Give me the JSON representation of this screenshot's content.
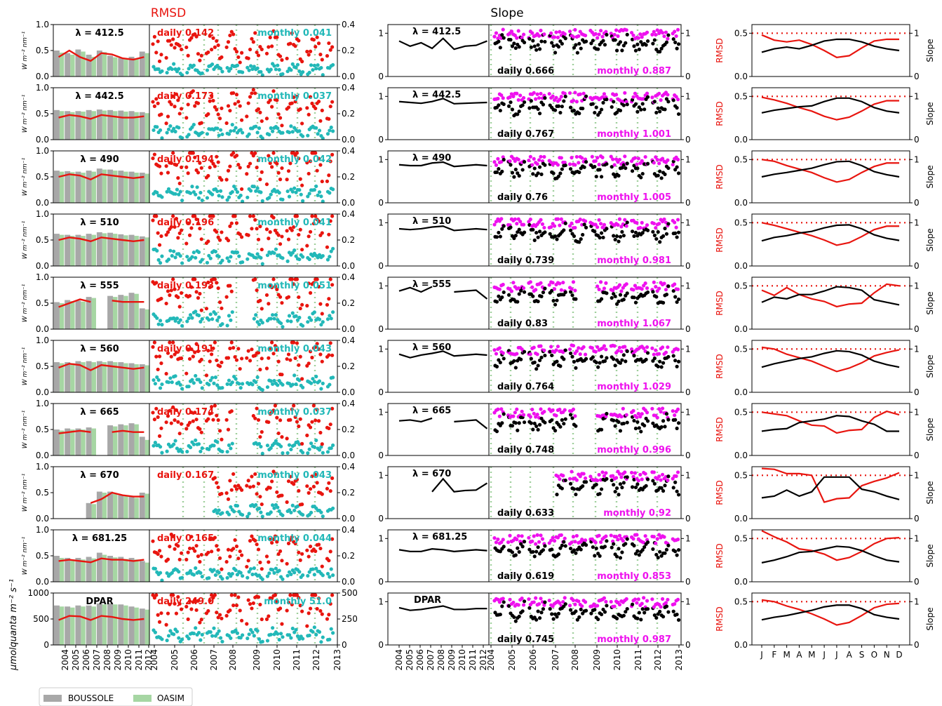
{
  "titles": {
    "rmsd": "RMSD",
    "slope": "Slope"
  },
  "colors": {
    "boussole": "#a8a8a8",
    "oasim": "#a6d6a3",
    "red": "#e8150f",
    "cyan": "#22b8b8",
    "magenta": "#ee11ee",
    "black": "#000000",
    "vline": "#9fcf9c"
  },
  "legend": {
    "boussole": "BOUSSOLE",
    "oasim": "OASIM"
  },
  "ylabels": {
    "rad": "W m⁻² nm⁻¹",
    "par": "μmolquanta m⁻² s⁻¹",
    "rmsd": "RMSD",
    "slope": "Slope"
  },
  "year_labels": [
    "2004",
    "2005",
    "2006",
    "2007",
    "2008",
    "2009",
    "2010",
    "2011",
    "2012"
  ],
  "year_labels_right": [
    "2004",
    "2005",
    "2006",
    "2007",
    "2008",
    "2009",
    "2010",
    "2011",
    "2012",
    "2013"
  ],
  "month_labels": [
    "J",
    "F",
    "M",
    "A",
    "M",
    "J",
    "J",
    "A",
    "S",
    "O",
    "N",
    "D"
  ],
  "chart_data": [
    {
      "type": "bar",
      "label": "λ = 412.5",
      "rmsd_daily": "daily 0.142",
      "rmsd_monthly": "monthly 0.041",
      "slope_daily": "daily 0.666",
      "slope_monthly": "monthly 0.887",
      "ylim_bar": [
        0,
        1.0
      ],
      "yticks_bar": [
        "0.0",
        "0.5",
        "1.0"
      ],
      "ylim_scatter": [
        0,
        0.4
      ],
      "yticks_scatter": [
        "0.0",
        "0.2",
        "0.4"
      ],
      "boussole": [
        0.5,
        0.45,
        0.52,
        0.42,
        0.5,
        0.4,
        0.36,
        0.38,
        0.48
      ],
      "oasim": [
        0.46,
        0.42,
        0.48,
        0.38,
        0.47,
        0.37,
        0.33,
        0.35,
        0.45
      ],
      "rmsd_line": [
        0.15,
        0.2,
        0.15,
        0.12,
        0.18,
        0.17,
        0.14,
        0.13,
        0.15
      ],
      "slope_line": [
        0.82,
        0.7,
        0.78,
        0.65,
        0.88,
        0.63,
        0.7,
        0.72,
        0.82
      ],
      "slope_ylim": [
        0,
        1.2
      ],
      "gaps": [],
      "seasonal_rmsd": [
        0.48,
        0.42,
        0.4,
        0.42,
        0.37,
        0.3,
        0.22,
        0.24,
        0.33,
        0.41,
        0.43,
        0.43
      ],
      "seasonal_slope": [
        0.56,
        0.64,
        0.68,
        0.64,
        0.72,
        0.82,
        0.86,
        0.86,
        0.8,
        0.7,
        0.64,
        0.6
      ]
    },
    {
      "type": "bar",
      "label": "λ = 442.5",
      "rmsd_daily": "daily 0.173",
      "rmsd_monthly": "monthly 0.037",
      "slope_daily": "daily 0.767",
      "slope_monthly": "monthly 1.001",
      "ylim_bar": [
        0,
        1.0
      ],
      "yticks_bar": [
        "0.0",
        "0.5",
        "1.0"
      ],
      "ylim_scatter": [
        0,
        0.4
      ],
      "yticks_scatter": [
        "0.0",
        "0.2",
        "0.4"
      ],
      "boussole": [
        0.57,
        0.55,
        0.55,
        0.57,
        0.58,
        0.57,
        0.56,
        0.55,
        0.53
      ],
      "oasim": [
        0.55,
        0.53,
        0.54,
        0.55,
        0.56,
        0.55,
        0.54,
        0.53,
        0.51
      ],
      "rmsd_line": [
        0.17,
        0.19,
        0.18,
        0.16,
        0.19,
        0.18,
        0.17,
        0.17,
        0.18
      ],
      "slope_line": [
        0.88,
        0.86,
        0.84,
        0.88,
        0.95,
        0.83,
        0.84,
        0.85,
        0.86
      ],
      "slope_ylim": [
        0,
        1.2
      ],
      "gaps": [],
      "seasonal_rmsd": [
        0.49,
        0.46,
        0.42,
        0.37,
        0.33,
        0.27,
        0.23,
        0.26,
        0.33,
        0.41,
        0.45,
        0.45
      ],
      "seasonal_slope": [
        0.62,
        0.68,
        0.72,
        0.76,
        0.78,
        0.88,
        0.96,
        0.96,
        0.88,
        0.74,
        0.66,
        0.62
      ]
    },
    {
      "type": "bar",
      "label": "λ = 490",
      "rmsd_daily": "daily 0.194",
      "rmsd_monthly": "monthly 0.042",
      "slope_daily": "daily 0.76",
      "slope_monthly": "monthly 1.005",
      "ylim_bar": [
        0,
        1.0
      ],
      "yticks_bar": [
        "0.0",
        "0.5",
        "1.0"
      ],
      "ylim_scatter": [
        0,
        0.4
      ],
      "yticks_scatter": [
        "0.0",
        "0.2",
        "0.4"
      ],
      "boussole": [
        0.62,
        0.61,
        0.6,
        0.62,
        0.66,
        0.64,
        0.62,
        0.6,
        0.58
      ],
      "oasim": [
        0.6,
        0.59,
        0.58,
        0.6,
        0.64,
        0.62,
        0.6,
        0.58,
        0.56
      ],
      "rmsd_line": [
        0.2,
        0.22,
        0.21,
        0.18,
        0.22,
        0.21,
        0.2,
        0.19,
        0.2
      ],
      "slope_line": [
        0.88,
        0.86,
        0.86,
        0.92,
        0.94,
        0.84,
        0.86,
        0.88,
        0.86
      ],
      "slope_ylim": [
        0,
        1.2
      ],
      "gaps": [],
      "seasonal_rmsd": [
        0.5,
        0.48,
        0.43,
        0.39,
        0.35,
        0.29,
        0.24,
        0.27,
        0.35,
        0.42,
        0.46,
        0.46
      ],
      "seasonal_slope": [
        0.6,
        0.66,
        0.7,
        0.75,
        0.8,
        0.88,
        0.95,
        0.96,
        0.86,
        0.72,
        0.65,
        0.6
      ]
    },
    {
      "type": "bar",
      "label": "λ = 510",
      "rmsd_daily": "daily 0.196",
      "rmsd_monthly": "monthly 0.041",
      "slope_daily": "daily 0.739",
      "slope_monthly": "monthly 0.981",
      "ylim_bar": [
        0,
        1.0
      ],
      "yticks_bar": [
        "0.0",
        "0.5",
        "1.0"
      ],
      "ylim_scatter": [
        0,
        0.4
      ],
      "yticks_scatter": [
        "0.0",
        "0.2",
        "0.4"
      ],
      "boussole": [
        0.62,
        0.6,
        0.6,
        0.62,
        0.65,
        0.64,
        0.61,
        0.6,
        0.57
      ],
      "oasim": [
        0.6,
        0.58,
        0.58,
        0.6,
        0.63,
        0.62,
        0.59,
        0.58,
        0.55
      ],
      "rmsd_line": [
        0.2,
        0.22,
        0.21,
        0.19,
        0.22,
        0.21,
        0.2,
        0.19,
        0.2
      ],
      "slope_line": [
        0.86,
        0.84,
        0.86,
        0.9,
        0.92,
        0.82,
        0.84,
        0.86,
        0.84
      ],
      "slope_ylim": [
        0,
        1.2
      ],
      "gaps": [],
      "seasonal_rmsd": [
        0.5,
        0.47,
        0.43,
        0.39,
        0.35,
        0.3,
        0.24,
        0.27,
        0.34,
        0.42,
        0.46,
        0.46
      ],
      "seasonal_slope": [
        0.58,
        0.66,
        0.7,
        0.76,
        0.8,
        0.88,
        0.94,
        0.95,
        0.86,
        0.72,
        0.64,
        0.59
      ]
    },
    {
      "type": "bar",
      "label": "λ = 555",
      "rmsd_daily": "daily 0.193",
      "rmsd_monthly": "monthly 0.051",
      "slope_daily": "daily 0.83",
      "slope_monthly": "monthly 1.067",
      "ylim_bar": [
        0,
        1.0
      ],
      "yticks_bar": [
        "0.0",
        "0.5",
        "1.0"
      ],
      "ylim_scatter": [
        0,
        0.4
      ],
      "yticks_scatter": [
        "0.0",
        "0.2",
        "0.4"
      ],
      "boussole": [
        0.52,
        0.56,
        0.55,
        0.62,
        null,
        0.64,
        0.66,
        0.7,
        0.4
      ],
      "oasim": [
        0.5,
        0.54,
        0.53,
        0.6,
        null,
        0.62,
        0.64,
        0.68,
        0.38
      ],
      "rmsd_line": [
        0.17,
        0.2,
        0.23,
        0.21,
        null,
        0.22,
        0.21,
        0.21,
        0.21
      ],
      "slope_line": [
        0.88,
        0.96,
        0.86,
        0.98,
        null,
        0.86,
        0.88,
        0.9,
        0.7
      ],
      "slope_ylim": [
        0,
        1.2
      ],
      "gaps": [
        4
      ],
      "seasonal_rmsd": [
        0.45,
        0.39,
        0.48,
        0.4,
        0.35,
        0.32,
        0.26,
        0.29,
        0.3,
        0.42,
        0.52,
        0.5
      ],
      "seasonal_slope": [
        0.62,
        0.74,
        0.7,
        0.8,
        0.8,
        0.88,
        0.98,
        0.96,
        0.9,
        0.68,
        0.62,
        0.56
      ]
    },
    {
      "type": "bar",
      "label": "λ = 560",
      "rmsd_daily": "daily 0.191",
      "rmsd_monthly": "monthly 0.043",
      "slope_daily": "daily 0.764",
      "slope_monthly": "monthly 1.029",
      "ylim_bar": [
        0,
        1.0
      ],
      "yticks_bar": [
        "0.0",
        "0.5",
        "1.0"
      ],
      "ylim_scatter": [
        0,
        0.4
      ],
      "yticks_scatter": [
        "0.0",
        "0.2",
        "0.4"
      ],
      "boussole": [
        0.58,
        0.58,
        0.6,
        0.6,
        0.6,
        0.6,
        0.58,
        0.56,
        0.54
      ],
      "oasim": [
        0.56,
        0.56,
        0.58,
        0.58,
        0.58,
        0.58,
        0.56,
        0.54,
        0.52
      ],
      "rmsd_line": [
        0.19,
        0.22,
        0.21,
        0.17,
        0.21,
        0.2,
        0.19,
        0.18,
        0.19
      ],
      "slope_line": [
        0.88,
        0.8,
        0.86,
        0.9,
        0.95,
        0.84,
        0.86,
        0.88,
        0.86
      ],
      "slope_ylim": [
        0,
        1.2
      ],
      "gaps": [],
      "seasonal_rmsd": [
        0.52,
        0.5,
        0.44,
        0.4,
        0.36,
        0.3,
        0.24,
        0.28,
        0.34,
        0.42,
        0.46,
        0.49
      ],
      "seasonal_slope": [
        0.58,
        0.66,
        0.72,
        0.78,
        0.82,
        0.9,
        0.96,
        0.94,
        0.86,
        0.72,
        0.64,
        0.58
      ]
    },
    {
      "type": "bar",
      "label": "λ = 665",
      "rmsd_daily": "daily 0.174",
      "rmsd_monthly": "monthly 0.037",
      "slope_daily": "daily 0.748",
      "slope_monthly": "monthly 0.996",
      "ylim_bar": [
        0,
        1.0
      ],
      "yticks_bar": [
        "0.0",
        "0.5",
        "1.0"
      ],
      "ylim_scatter": [
        0,
        0.4
      ],
      "yticks_scatter": [
        "0.0",
        "0.2",
        "0.4"
      ],
      "boussole": [
        0.5,
        0.52,
        0.52,
        0.54,
        null,
        0.58,
        0.6,
        0.62,
        0.36
      ],
      "oasim": [
        0.48,
        0.5,
        0.5,
        0.52,
        null,
        0.56,
        0.58,
        0.6,
        0.3
      ],
      "rmsd_line": [
        0.17,
        0.18,
        0.19,
        0.18,
        null,
        0.18,
        0.19,
        0.18,
        0.18
      ],
      "slope_line": [
        0.8,
        0.82,
        0.78,
        0.86,
        null,
        0.78,
        0.8,
        0.82,
        0.62
      ],
      "slope_ylim": [
        0,
        1.2
      ],
      "gaps": [
        4
      ],
      "seasonal_rmsd": [
        0.5,
        0.48,
        0.46,
        0.4,
        0.35,
        0.34,
        0.26,
        0.29,
        0.3,
        0.44,
        0.51,
        0.47
      ],
      "seasonal_slope": [
        0.56,
        0.6,
        0.62,
        0.76,
        0.8,
        0.84,
        0.92,
        0.9,
        0.8,
        0.72,
        0.56,
        0.56
      ]
    },
    {
      "type": "bar",
      "label": "λ = 670",
      "rmsd_daily": "daily 0.167",
      "rmsd_monthly": "monthly 0.043",
      "slope_daily": "daily 0.633",
      "slope_monthly": "monthly 0.92",
      "ylim_bar": [
        0,
        1.0
      ],
      "yticks_bar": [
        "0.0",
        "0.5",
        "1.0"
      ],
      "ylim_scatter": [
        0,
        0.4
      ],
      "yticks_scatter": [
        "0.0",
        "0.2",
        "0.4"
      ],
      "boussole": [
        null,
        null,
        null,
        0.3,
        0.52,
        0.52,
        0.45,
        0.42,
        0.5
      ],
      "oasim": [
        null,
        null,
        null,
        0.28,
        0.5,
        0.48,
        0.43,
        0.4,
        0.48
      ],
      "rmsd_line": [
        null,
        null,
        null,
        0.12,
        0.15,
        0.2,
        0.18,
        0.17,
        0.17
      ],
      "slope_line": [
        null,
        null,
        null,
        0.62,
        0.92,
        0.62,
        0.65,
        0.66,
        0.82
      ],
      "slope_ylim": [
        0,
        1.2
      ],
      "gaps": [
        0,
        1,
        2
      ],
      "seasonal_rmsd": [
        0.58,
        0.57,
        0.52,
        0.52,
        0.5,
        0.19,
        0.23,
        0.24,
        0.38,
        0.43,
        0.47,
        0.53
      ],
      "seasonal_slope": [
        0.48,
        0.52,
        0.66,
        0.52,
        0.62,
        0.96,
        0.96,
        0.96,
        0.68,
        0.62,
        0.52,
        0.44
      ]
    },
    {
      "type": "bar",
      "label": "λ = 681.25",
      "rmsd_daily": "daily 0.165",
      "rmsd_monthly": "monthly 0.044",
      "slope_daily": "daily 0.619",
      "slope_monthly": "monthly 0.853",
      "ylim_bar": [
        0,
        1.0
      ],
      "yticks_bar": [
        "0.0",
        "0.5",
        "1.0"
      ],
      "ylim_scatter": [
        0,
        0.4
      ],
      "yticks_scatter": [
        "0.0",
        "0.2",
        "0.4"
      ],
      "boussole": [
        0.5,
        0.46,
        0.46,
        0.48,
        0.56,
        0.5,
        0.48,
        0.46,
        0.4
      ],
      "oasim": [
        0.46,
        0.43,
        0.43,
        0.45,
        0.52,
        0.47,
        0.44,
        0.43,
        0.37
      ],
      "rmsd_line": [
        0.16,
        0.17,
        0.16,
        0.15,
        0.18,
        0.17,
        0.17,
        0.16,
        0.17
      ],
      "slope_line": [
        0.74,
        0.7,
        0.7,
        0.76,
        0.74,
        0.7,
        0.72,
        0.74,
        0.72
      ],
      "slope_ylim": [
        0,
        1.2
      ],
      "gaps": [],
      "seasonal_rmsd": [
        0.59,
        0.52,
        0.46,
        0.38,
        0.36,
        0.32,
        0.25,
        0.28,
        0.35,
        0.44,
        0.5,
        0.51
      ],
      "seasonal_slope": [
        0.44,
        0.5,
        0.58,
        0.68,
        0.7,
        0.76,
        0.82,
        0.8,
        0.72,
        0.6,
        0.5,
        0.46
      ]
    },
    {
      "type": "bar",
      "label": "DPAR",
      "rmsd_daily": "daily 249.0",
      "rmsd_monthly": "monthly 51.0",
      "slope_daily": "daily 0.745",
      "slope_monthly": "monthly 0.987",
      "ylim_bar": [
        0,
        1000
      ],
      "yticks_bar": [
        "0",
        "500",
        "1000"
      ],
      "ylim_scatter": [
        0,
        500
      ],
      "yticks_scatter": [
        "0",
        "250",
        "500"
      ],
      "boussole": [
        760,
        740,
        760,
        760,
        800,
        800,
        780,
        740,
        700
      ],
      "oasim": [
        740,
        720,
        740,
        740,
        780,
        780,
        760,
        720,
        680
      ],
      "rmsd_line": [
        240,
        280,
        275,
        240,
        280,
        270,
        250,
        240,
        250
      ],
      "slope_line": [
        0.86,
        0.8,
        0.82,
        0.86,
        0.9,
        0.82,
        0.82,
        0.84,
        0.84
      ],
      "slope_ylim": [
        0,
        1.2
      ],
      "gaps": [],
      "seasonal_rmsd": [
        0.52,
        0.5,
        0.45,
        0.41,
        0.36,
        0.3,
        0.23,
        0.26,
        0.34,
        0.43,
        0.47,
        0.48
      ],
      "seasonal_slope": [
        0.58,
        0.64,
        0.68,
        0.74,
        0.8,
        0.88,
        0.92,
        0.92,
        0.84,
        0.7,
        0.64,
        0.6
      ]
    }
  ]
}
